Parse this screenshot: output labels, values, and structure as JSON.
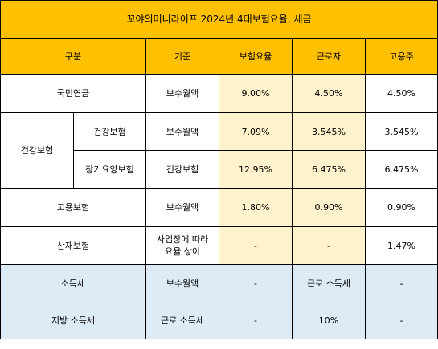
{
  "title": "꼬야의머니라이프 2024년 4대보험요율, 세금",
  "headers": {
    "category": "구분",
    "basis": "기준",
    "rate": "보험요율",
    "employee": "근로자",
    "employer": "고용주"
  },
  "rows": {
    "pension": {
      "name": "국민연금",
      "basis": "보수월액",
      "rate": "9.00%",
      "employee": "4.50%",
      "employer": "4.50%"
    },
    "health_group": "건강보험",
    "health": {
      "name": "건강보험",
      "basis": "보수월액",
      "rate": "7.09%",
      "employee": "3.545%",
      "employer": "3.545%"
    },
    "ltc": {
      "name": "장기요양보험",
      "basis": "건강보험",
      "rate": "12.95%",
      "employee": "6.475%",
      "employer": "6.475%"
    },
    "employment": {
      "name": "고용보험",
      "basis": "보수월액",
      "rate": "1.80%",
      "employee": "0.90%",
      "employer": "0.90%"
    },
    "industrial": {
      "name": "산재보험",
      "basis_line1": "사업장에 따라",
      "basis_line2": "요율 상이",
      "rate": "-",
      "employee": "-",
      "employer": "1.47%"
    },
    "income_tax": {
      "name": "소득세",
      "basis": "보수월액",
      "rate": "-",
      "employee": "근로 소득세",
      "employer": "-"
    },
    "local_tax": {
      "name": "지방 소득세",
      "basis": "근로 소득세",
      "rate": "-",
      "employee": "10%",
      "employer": "-"
    }
  },
  "colors": {
    "header_bg": "#ffc000",
    "rate_bg": "#fff2cc",
    "tax_bg": "#ddebf7"
  }
}
